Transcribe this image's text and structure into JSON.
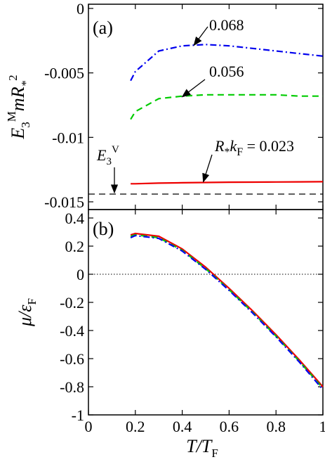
{
  "chart_data": [
    {
      "panel": "(a)",
      "type": "line",
      "ylabel": "E3^M m R*^2",
      "ylim": [
        -0.0155,
        0.0
      ],
      "yticks": [
        0,
        -0.005,
        -0.01,
        -0.015
      ],
      "ytick_labels": [
        "0",
        "-0.005",
        "-0.01",
        "-0.015"
      ],
      "xlim": [
        0,
        1
      ],
      "series": [
        {
          "name": "0.068",
          "color": "#0000ee",
          "dash": "dashdot",
          "x": [
            0.18,
            0.2,
            0.3,
            0.4,
            0.5,
            0.6,
            0.7,
            0.8,
            0.9,
            1.0
          ],
          "y": [
            -0.0056,
            -0.0049,
            -0.0033,
            -0.0029,
            -0.0028,
            -0.0029,
            -0.0031,
            -0.0033,
            -0.0035,
            -0.0037
          ]
        },
        {
          "name": "0.056",
          "color": "#00cc00",
          "dash": "dash",
          "x": [
            0.18,
            0.2,
            0.3,
            0.4,
            0.5,
            0.6,
            0.7,
            0.8,
            0.9,
            1.0
          ],
          "y": [
            -0.0086,
            -0.008,
            -0.007,
            -0.0068,
            -0.0067,
            -0.0067,
            -0.0067,
            -0.0067,
            -0.0068,
            -0.0068
          ]
        },
        {
          "name": "R*kF = 0.023",
          "color": "#ee0000",
          "dash": "solid",
          "x": [
            0.18,
            0.2,
            0.3,
            0.4,
            0.5,
            0.6,
            0.7,
            0.8,
            0.9,
            1.0
          ],
          "y": [
            -0.0136,
            -0.0136,
            -0.01355,
            -0.01352,
            -0.0135,
            -0.01348,
            -0.01347,
            -0.01346,
            -0.01345,
            -0.01344
          ]
        },
        {
          "name": "E3^V",
          "color": "#000000",
          "dash": "dash",
          "x": [
            0.0,
            1.0
          ],
          "y": [
            -0.0144,
            -0.0144
          ]
        }
      ],
      "annotations": [
        {
          "text": "0.068",
          "target_series": "0.068"
        },
        {
          "text": "0.056",
          "target_series": "0.056"
        },
        {
          "text": "R*kF = 0.023",
          "target_series": "R*kF = 0.023"
        },
        {
          "text": "E3^V",
          "target_series": "E3^V"
        }
      ]
    },
    {
      "panel": "(b)",
      "type": "line",
      "xlabel": "T/TF",
      "ylabel": "μ/εF",
      "xlim": [
        0,
        1
      ],
      "ylim": [
        -1.0,
        0.45
      ],
      "xticks": [
        0,
        0.2,
        0.4,
        0.6,
        0.8,
        1
      ],
      "xtick_labels": [
        "0",
        "0.2",
        "0.4",
        "0.6",
        "0.8",
        "1"
      ],
      "yticks": [
        0.4,
        0.2,
        0,
        -0.2,
        -0.4,
        -0.6,
        -0.8,
        -1
      ],
      "ytick_labels": [
        "0.4",
        "0.2",
        "0",
        "-0.2",
        "-0.4",
        "-0.6",
        "-0.8",
        "-1"
      ],
      "reference_line": {
        "y": 0,
        "style": "dotted"
      },
      "series": [
        {
          "name": "0.023",
          "color": "#ee0000",
          "dash": "solid",
          "x": [
            0.18,
            0.2,
            0.3,
            0.4,
            0.5,
            0.6,
            0.7,
            0.8,
            0.9,
            1.0
          ],
          "y": [
            0.28,
            0.29,
            0.27,
            0.18,
            0.05,
            -0.1,
            -0.26,
            -0.43,
            -0.61,
            -0.8
          ]
        },
        {
          "name": "0.056",
          "color": "#00cc00",
          "dash": "dash",
          "x": [
            0.18,
            0.2,
            0.3,
            0.4,
            0.5,
            0.6,
            0.7,
            0.8,
            0.9,
            1.0
          ],
          "y": [
            0.27,
            0.28,
            0.26,
            0.17,
            0.04,
            -0.11,
            -0.27,
            -0.44,
            -0.62,
            -0.81
          ]
        },
        {
          "name": "0.068",
          "color": "#0000ee",
          "dash": "dashdot",
          "x": [
            0.18,
            0.2,
            0.3,
            0.4,
            0.5,
            0.6,
            0.7,
            0.8,
            0.9,
            1.0
          ],
          "y": [
            0.26,
            0.275,
            0.255,
            0.165,
            0.035,
            -0.115,
            -0.275,
            -0.445,
            -0.625,
            -0.82
          ]
        }
      ]
    }
  ]
}
